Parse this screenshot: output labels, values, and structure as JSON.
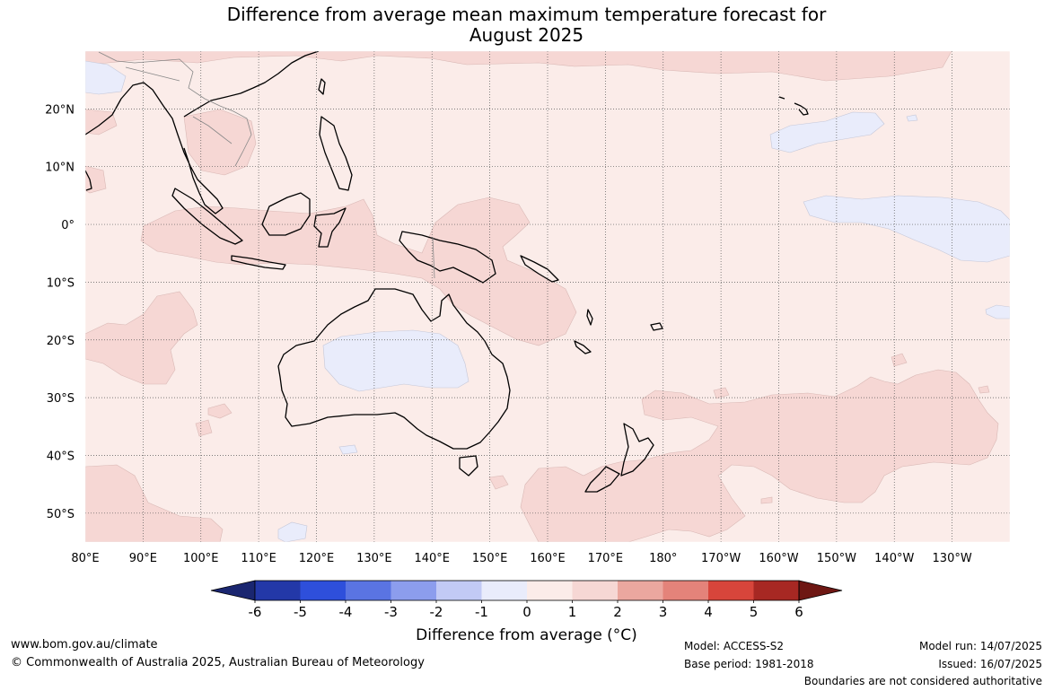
{
  "title_line1": "Difference from average mean maximum temperature forecast for",
  "title_line2": "August 2025",
  "map": {
    "lon_labels": [
      "80°E",
      "90°E",
      "100°E",
      "110°E",
      "120°E",
      "130°E",
      "140°E",
      "150°E",
      "160°E",
      "170°E",
      "180°",
      "170°W",
      "160°W",
      "150°W",
      "140°W",
      "130°W"
    ],
    "lat_labels": [
      "20°N",
      "10°N",
      "0°",
      "10°S",
      "20°S",
      "30°S",
      "40°S",
      "50°S"
    ],
    "lon_range": [
      80,
      240
    ],
    "lat_range": [
      -55,
      30
    ],
    "colors": {
      "band_0_1": "#fbece9",
      "band_1_2": "#f6d7d4",
      "band_m1_0": "#e9ecfb",
      "coast": "#000000",
      "grid": "#555555"
    }
  },
  "colorbar": {
    "title": "Difference from average (°C)",
    "ticks": [
      "-6",
      "-5",
      "-4",
      "-3",
      "-2",
      "-1",
      "0",
      "1",
      "2",
      "3",
      "4",
      "5",
      "6"
    ],
    "colors": [
      "#1a2670",
      "#2338a8",
      "#2e4fdb",
      "#5a74e2",
      "#8c9ded",
      "#c2caf5",
      "#e9ecfb",
      "#fbece9",
      "#f6d7d4",
      "#eba79f",
      "#e4837a",
      "#d7453b",
      "#a72823",
      "#6e1713"
    ]
  },
  "footer": {
    "website": "www.bom.gov.au/climate",
    "copyright": "© Commonwealth of Australia 2025, Australian Bureau of Meteorology",
    "model": "Model: ACCESS-S2",
    "base_period": "Base period: 1981-2018",
    "model_run": "Model run: 14/07/2025",
    "issued": "Issued: 16/07/2025",
    "disclaimer": "Boundaries are not considered authoritative"
  }
}
